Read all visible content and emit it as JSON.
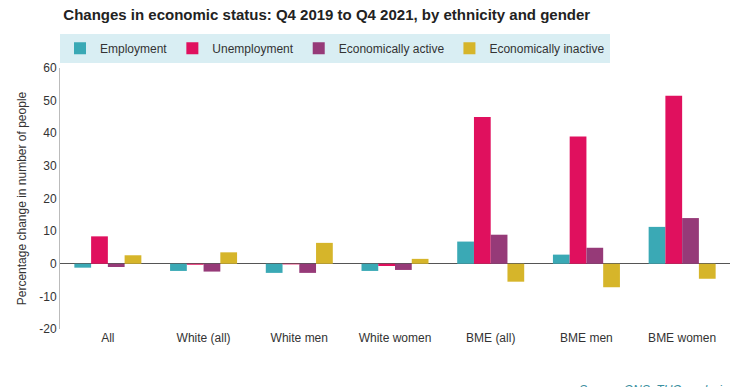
{
  "chart_data": {
    "type": "bar",
    "title": "Changes in economic status: Q4 2019 to Q4 2021, by ethnicity and gender",
    "y_label": "Percentage change in number of people",
    "source": "Source: ONS, TUC analysis",
    "categories": [
      "All",
      "White (all)",
      "White men",
      "White women",
      "BME (all)",
      "BME men",
      "BME women"
    ],
    "series": [
      {
        "name": "Employment",
        "color": "#3aa9b5",
        "values": [
          -1.2,
          -2.2,
          -2.8,
          -2.2,
          6.8,
          2.8,
          11.3
        ]
      },
      {
        "name": "Unemployment",
        "color": "#e0105e",
        "values": [
          8.4,
          -0.3,
          -0.2,
          -0.7,
          45,
          39,
          51.5
        ]
      },
      {
        "name": "Economically active",
        "color": "#963a78",
        "values": [
          -1,
          -2.4,
          -2.8,
          -1.9,
          8.9,
          4.9,
          14
        ]
      },
      {
        "name": "Economically inactive",
        "color": "#d6b52a",
        "values": [
          2.6,
          3.5,
          6.4,
          1.5,
          -5.5,
          -7.2,
          -4.6
        ]
      }
    ],
    "ylim": [
      -20,
      60
    ],
    "yticks": [
      -20,
      -10,
      0,
      10,
      20,
      30,
      40,
      50,
      60
    ],
    "grid": false,
    "legend": "top-left"
  }
}
